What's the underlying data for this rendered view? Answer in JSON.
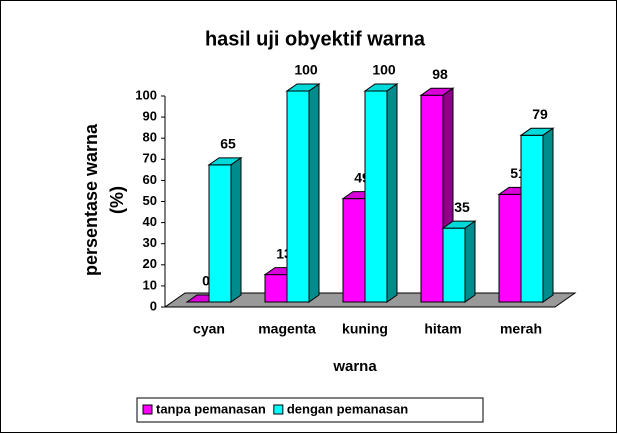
{
  "chart_data": {
    "type": "bar3d",
    "title": "hasil uji obyektif warna",
    "ylabel": [
      "persentase warna",
      "(%)"
    ],
    "xlabel": "warna",
    "categories": [
      "cyan",
      "magenta",
      "kuning",
      "hitam",
      "merah"
    ],
    "series": [
      {
        "name": "tanpa pemanasan",
        "color": "#ff00ff",
        "values": [
          0,
          13,
          49,
          98,
          51
        ]
      },
      {
        "name": "dengan pemanasan",
        "color": "#00ffff",
        "values": [
          65,
          100,
          100,
          35,
          79
        ]
      }
    ],
    "ylim": [
      0,
      100
    ],
    "yticks": [
      0,
      10,
      20,
      30,
      40,
      50,
      60,
      70,
      80,
      90,
      100
    ],
    "legend": "bottom"
  }
}
